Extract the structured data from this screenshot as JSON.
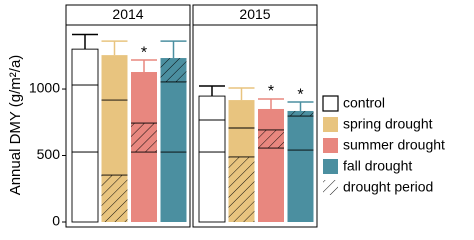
{
  "chart_data": {
    "type": "stacked-bar-facets",
    "ylabel": "Annual DMY (g/m²/a)",
    "ylim": [
      0,
      1474
    ],
    "yticks": [
      0,
      500,
      1000
    ],
    "panels": [
      "2014",
      "2015"
    ],
    "series": [
      {
        "name": "control",
        "color": "#ffffff",
        "error_color": "#000000",
        "segments": [
          [
            526,
            504,
            270
          ],
          [
            526,
            241,
            180
          ]
        ],
        "errors": [
          110,
          76
        ],
        "drought_segment": null,
        "marks": [
          null,
          null
        ]
      },
      {
        "name": "spring drought",
        "color": "#e8c47f",
        "error_color": "#e8c47f",
        "segments": [
          [
            353,
            564,
            338
          ],
          [
            489,
            218,
            210
          ]
        ],
        "errors": [
          105,
          91
        ],
        "drought_segment": 0,
        "marks": [
          null,
          null
        ]
      },
      {
        "name": "summer drought",
        "color": "#e8877f",
        "error_color": "#e8877f",
        "segments": [
          [
            526,
            218,
            384
          ],
          [
            556,
            136,
            158
          ]
        ],
        "errors": [
          90,
          75
        ],
        "drought_segment": 1,
        "marks": [
          "*",
          "*"
        ]
      },
      {
        "name": "fall drought",
        "color": "#4b8fa0",
        "error_color": "#4b8fa0",
        "segments": [
          [
            526,
            527,
            180
          ],
          [
            541,
            256,
            38
          ]
        ],
        "errors": [
          127,
          67
        ],
        "drought_segment": 2,
        "marks": [
          null,
          "*"
        ]
      }
    ],
    "hatch_label": "drought period"
  }
}
